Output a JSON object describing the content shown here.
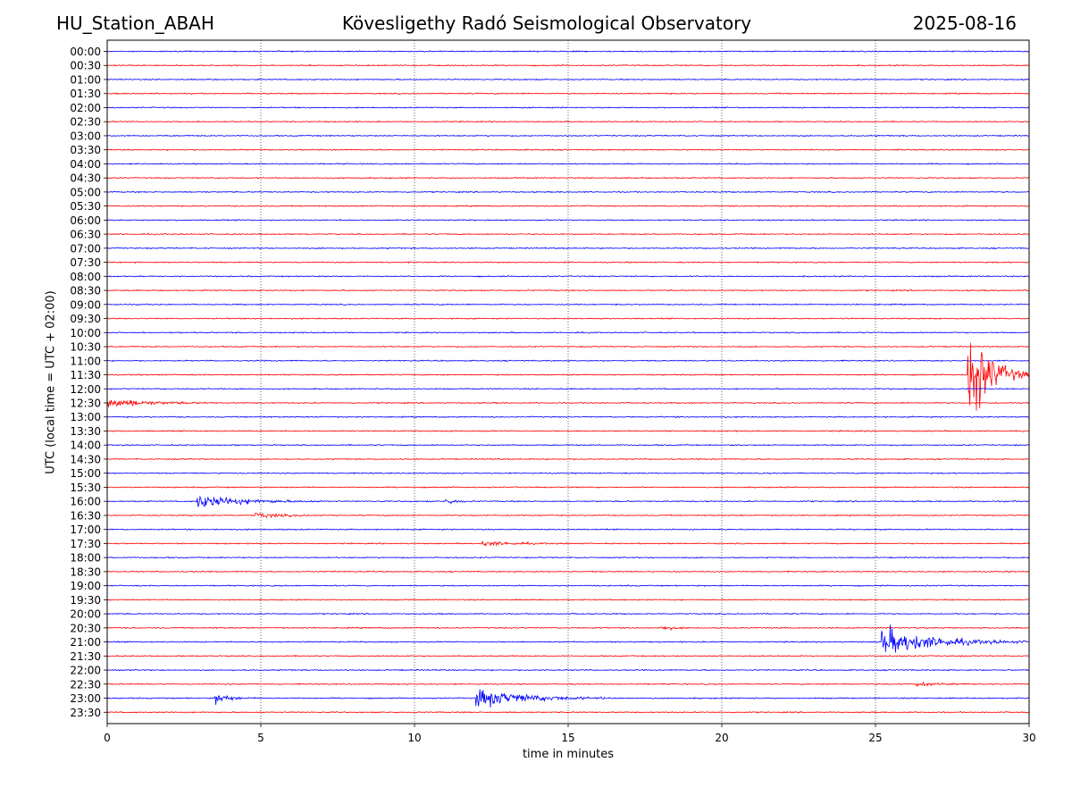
{
  "header": {
    "station": "HU_Station_ABAH",
    "observatory": "Kövesligethy Radó Seismological Observatory",
    "date": "2025-08-16"
  },
  "chart_data": {
    "type": "line",
    "title": "Kövesligethy Radó Seismological Observatory",
    "xlabel": "time in minutes",
    "ylabel": "UTC (local time = UTC + 02:00)",
    "xlim": [
      0,
      30
    ],
    "xticks": [
      0,
      5,
      10,
      15,
      20,
      25,
      30
    ],
    "grid": "vertical dotted lines at 5-minute ticks",
    "row_labels": [
      "00:00",
      "00:30",
      "01:00",
      "01:30",
      "02:00",
      "02:30",
      "03:00",
      "03:30",
      "04:00",
      "04:30",
      "05:00",
      "05:30",
      "06:00",
      "06:30",
      "07:00",
      "07:30",
      "08:00",
      "08:30",
      "09:00",
      "09:30",
      "10:00",
      "10:30",
      "11:00",
      "11:30",
      "12:00",
      "12:30",
      "13:00",
      "13:30",
      "14:00",
      "14:30",
      "15:00",
      "15:30",
      "16:00",
      "16:30",
      "17:00",
      "17:30",
      "18:00",
      "18:30",
      "19:00",
      "19:30",
      "20:00",
      "20:30",
      "21:00",
      "21:30",
      "22:00",
      "22:30",
      "23:00",
      "23:30"
    ],
    "colors": {
      "even_rows": "#0000ff",
      "odd_rows": "#ff0000"
    },
    "events": [
      {
        "row": "11:30",
        "start_min": 28.0,
        "end_min": 30.0,
        "peak_amp": 5.6
      },
      {
        "row": "12:30",
        "start_min": 0.0,
        "end_min": 3.5,
        "peak_amp": 0.5
      },
      {
        "row": "16:00",
        "start_min": 2.9,
        "end_min": 7.0,
        "peak_amp": 0.7
      },
      {
        "row": "16:00",
        "start_min": 11.0,
        "end_min": 11.8,
        "peak_amp": 0.4
      },
      {
        "row": "16:30",
        "start_min": 4.8,
        "end_min": 7.0,
        "peak_amp": 0.3
      },
      {
        "row": "17:30",
        "start_min": 12.2,
        "end_min": 15.0,
        "peak_amp": 0.25
      },
      {
        "row": "20:30",
        "start_min": 18.0,
        "end_min": 19.0,
        "peak_amp": 0.3
      },
      {
        "row": "21:00",
        "start_min": 25.2,
        "end_min": 30.0,
        "peak_amp": 1.5
      },
      {
        "row": "22:30",
        "start_min": 26.3,
        "end_min": 28.5,
        "peak_amp": 0.2
      },
      {
        "row": "23:00",
        "start_min": 3.5,
        "end_min": 4.8,
        "peak_amp": 0.6
      },
      {
        "row": "23:00",
        "start_min": 12.0,
        "end_min": 16.5,
        "peak_amp": 1.0
      }
    ]
  }
}
